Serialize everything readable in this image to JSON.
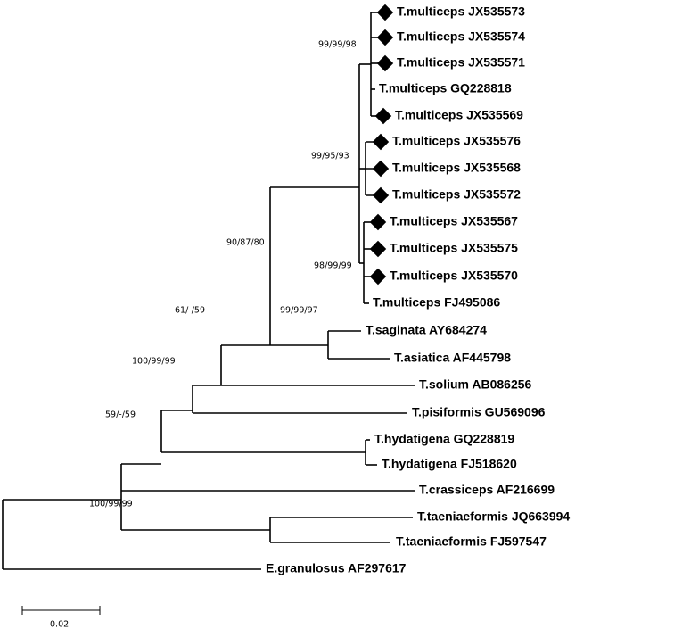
{
  "leaves": [
    "T.multiceps JX535573",
    "T.multiceps JX535574",
    "T.multiceps JX535571",
    "T.multiceps GQ228818",
    "T.multiceps JX535569",
    "T.multiceps JX535576",
    "T.multiceps JX535568",
    "T.multiceps JX535572",
    "T.multiceps JX535567",
    "T.multiceps JX535575",
    "T.multiceps JX535570",
    "T.multiceps FJ495086",
    "T.saginata AY684274",
    "T.asiatica AF445798",
    "T.solium AB086256",
    "T.pisiformis GU569096",
    "T.hydatigena GQ228819",
    "T.hydatigena FJ518620",
    "T.crassiceps AF216699",
    "T.taeniaeformis JQ663994",
    "T.taeniaeformis FJ597547",
    "E.granulosus AF297617"
  ],
  "bootstrap_labels": [
    "99/99/98",
    "99/95/93",
    "90/87/80",
    "98/99/99",
    "61/-/59",
    "99/99/97",
    "100/99/99",
    "59/-/59",
    "100/99/99"
  ],
  "scale_bar": {
    "label": "0.02"
  }
}
